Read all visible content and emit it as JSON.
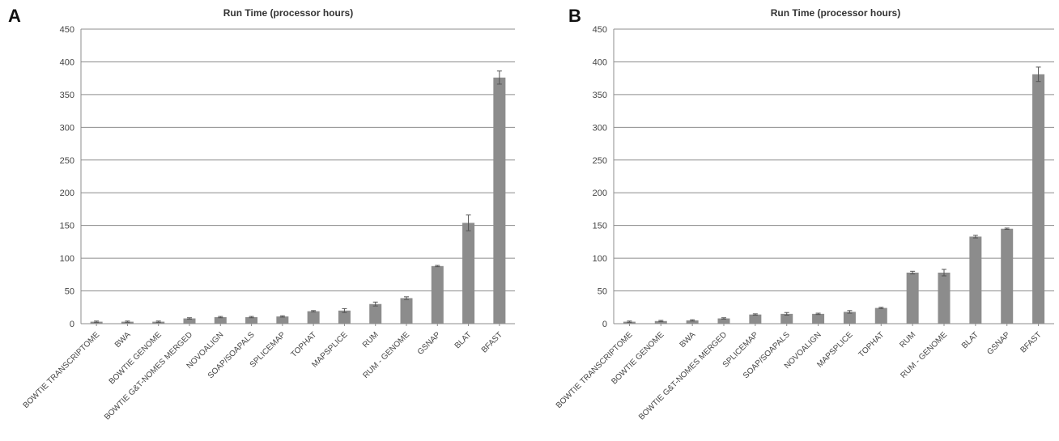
{
  "chart_data": [
    {
      "panel": "A",
      "type": "bar",
      "title": "Run Time (processor hours)",
      "categories": [
        "BOWTIE TRANSCRIPTOME",
        "BWA",
        "BOWTIE GENOME",
        "BOWTIE G&T-NOMES MERGED",
        "NOVOALIGN",
        "SOAP/SOAPALS",
        "SPLICEMAP",
        "TOPHAT",
        "MAPSPLICE",
        "RUM",
        "RUM - GENOME",
        "GSNAP",
        "BLAT",
        "BFAST"
      ],
      "values": [
        3,
        3,
        3,
        8,
        10,
        10,
        11,
        19,
        20,
        30,
        39,
        88,
        154,
        376
      ],
      "errors": [
        1,
        1,
        1,
        1,
        1,
        1,
        1,
        1,
        3,
        3,
        2,
        1,
        12,
        10
      ],
      "ylim": [
        0,
        450
      ],
      "yticks": [
        0,
        50,
        100,
        150,
        200,
        250,
        300,
        350,
        400,
        450
      ],
      "grid": true,
      "bar_color": "#8c8c8c",
      "grid_color": "#8c8c8c"
    },
    {
      "panel": "B",
      "type": "bar",
      "title": "Run Time (processor hours)",
      "categories": [
        "BOWTIE TRANSCRIPTOME",
        "BOWTIE GENOME",
        "BWA",
        "BOWTIE G&T-NOMES MERGED",
        "SPLICEMAP",
        "SOAP/SOAPALS",
        "NOVOALIGN",
        "MAPSPLICE",
        "TOPHAT",
        "RUM",
        "RUM - GENOME",
        "BLAT",
        "GSNAP",
        "BFAST"
      ],
      "values": [
        3,
        4,
        5,
        8,
        14,
        15,
        15,
        18,
        24,
        78,
        78,
        133,
        145,
        381
      ],
      "errors": [
        1,
        1,
        1,
        1,
        1,
        2,
        1,
        2,
        1,
        2,
        5,
        2,
        1,
        11
      ],
      "ylim": [
        0,
        450
      ],
      "yticks": [
        0,
        50,
        100,
        150,
        200,
        250,
        300,
        350,
        400,
        450
      ],
      "grid": true,
      "bar_color": "#8c8c8c",
      "grid_color": "#8c8c8c"
    }
  ]
}
